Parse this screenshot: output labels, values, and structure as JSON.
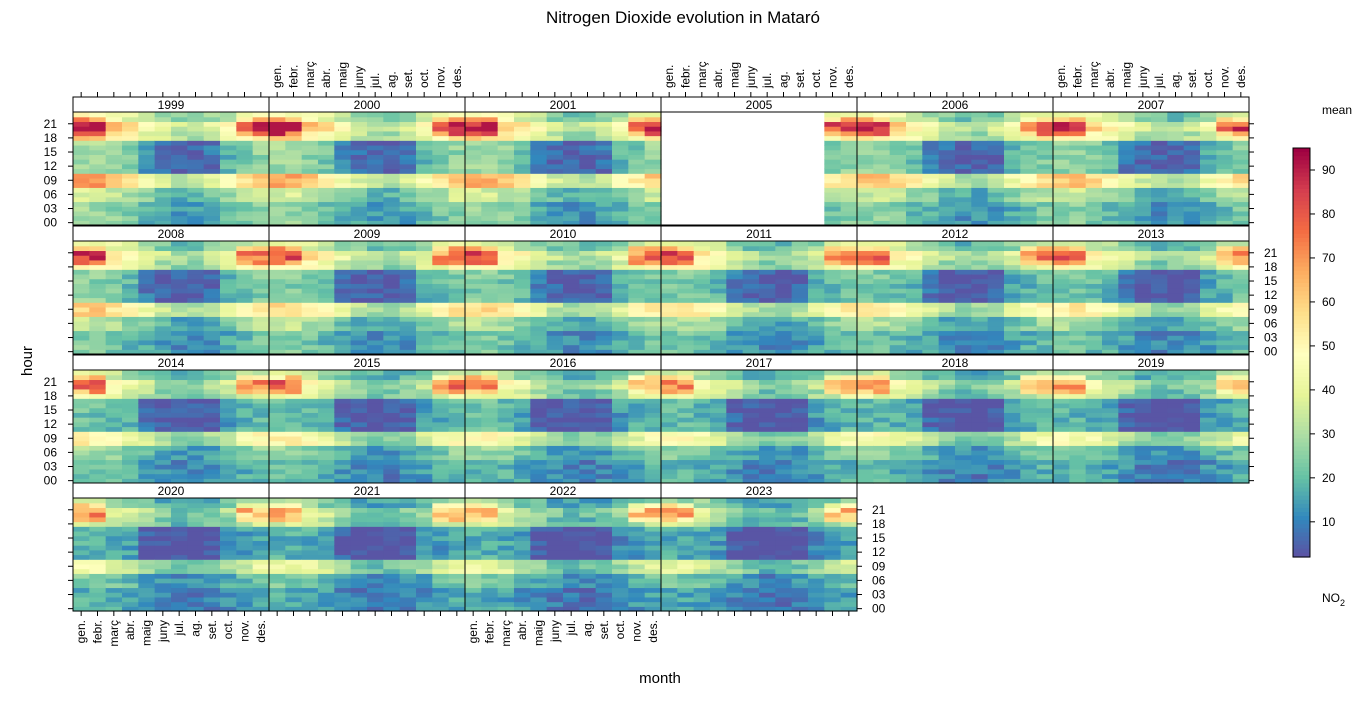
{
  "chart_data": {
    "type": "heatmap",
    "title": "Nitrogen Dioxide evolution in Mataró",
    "xlabel": "month",
    "ylabel": "hour",
    "panels": [
      "1999",
      "2000",
      "2001",
      "2005",
      "2006",
      "2007",
      "2008",
      "2009",
      "2010",
      "2011",
      "2012",
      "2013",
      "2014",
      "2015",
      "2016",
      "2017",
      "2018",
      "2019",
      "2020",
      "2021",
      "2022",
      "2023"
    ],
    "x_tick_labels": [
      "gen.",
      "febr.",
      "març",
      "abr.",
      "maig",
      "juny",
      "jul.",
      "ag.",
      "set.",
      "oct.",
      "nov.",
      "des."
    ],
    "y_tick_labels": [
      "00",
      "03",
      "06",
      "09",
      "12",
      "15",
      "18",
      "21"
    ],
    "y_ticks": [
      0,
      3,
      6,
      9,
      12,
      15,
      18,
      21
    ],
    "ylim": [
      0,
      23
    ],
    "legend": {
      "title": "mean",
      "subtitle_main": "NO",
      "subtitle_sub": "2",
      "ticks": [
        10,
        20,
        30,
        40,
        50,
        60,
        70,
        80,
        90
      ],
      "range": [
        2,
        95
      ],
      "placement": "right"
    },
    "colorscale": [
      "#5e4fa2",
      "#3288bd",
      "#66c2a5",
      "#abdda4",
      "#e6f598",
      "#ffffbf",
      "#fee08b",
      "#fdae61",
      "#f46d43",
      "#d53e4f",
      "#9e0142"
    ],
    "grid": false
  }
}
